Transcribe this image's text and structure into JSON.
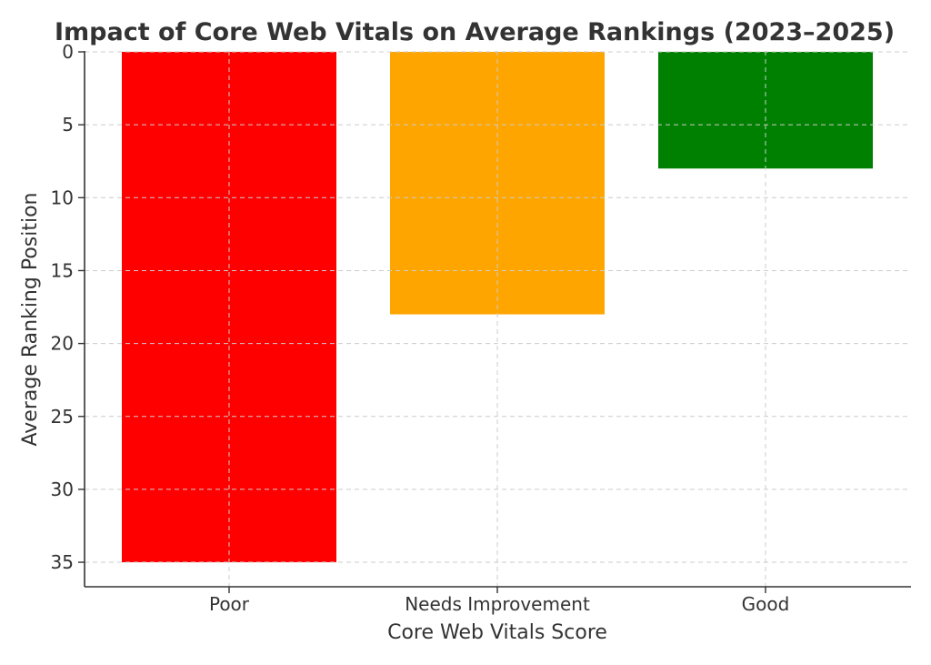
{
  "chart_data": {
    "type": "bar",
    "title": "Impact of Core Web Vitals on Average Rankings (2023–2025)",
    "xlabel": "Core Web Vitals Score",
    "ylabel": "Average Ranking Position",
    "categories": [
      "Poor",
      "Needs Improvement",
      "Good"
    ],
    "values": [
      35,
      18,
      8
    ],
    "colors": [
      "#ff0000",
      "#ffa500",
      "#008000"
    ],
    "ylim": [
      0,
      35
    ],
    "y_inverted": true,
    "yticks": [
      0,
      5,
      10,
      15,
      20,
      25,
      30,
      35
    ],
    "grid": true,
    "legend": "none"
  }
}
